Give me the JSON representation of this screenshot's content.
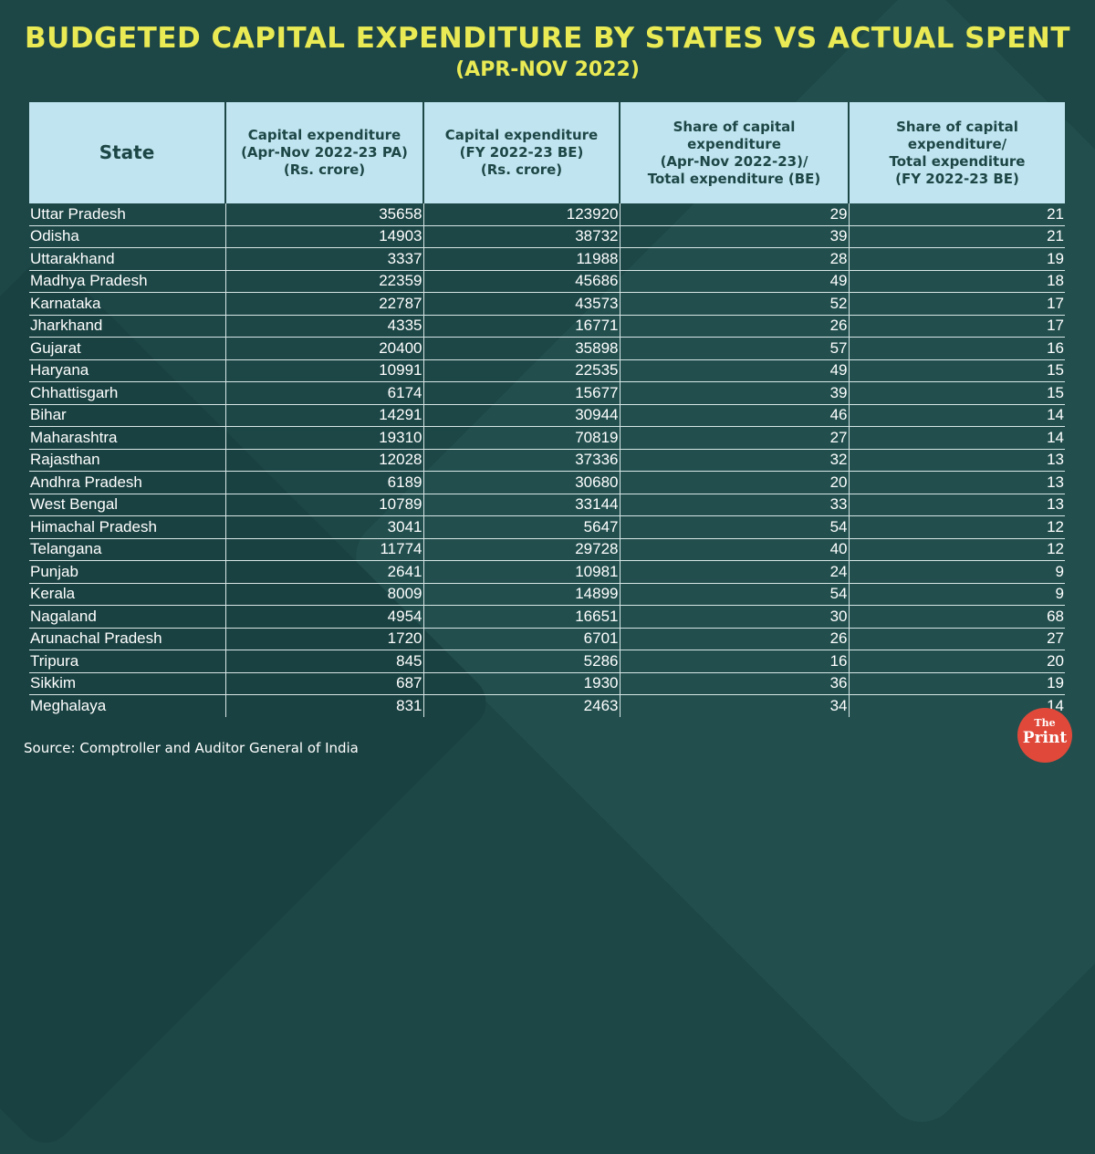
{
  "chart_data": {
    "type": "table",
    "title": "BUDGETED CAPITAL EXPENDITURE BY STATES VS ACTUAL SPENT",
    "subtitle": "(APR-NOV 2022)",
    "columns": [
      {
        "line1": "State"
      },
      {
        "line1": "Capital expenditure",
        "line2": "(Apr-Nov 2022-23 PA)",
        "line3": "(Rs. crore)"
      },
      {
        "line1": "Capital expenditure",
        "line2": "(FY 2022-23 BE)",
        "line3": "(Rs. crore)"
      },
      {
        "line1": "Share of capital",
        "line2": "expenditure",
        "line3": "(Apr-Nov 2022-23)/",
        "line4": "Total expenditure (BE)"
      },
      {
        "line1": "Share of capital",
        "line2": "expenditure/",
        "line3": "Total expenditure",
        "line4": "(FY 2022-23 BE)"
      }
    ],
    "rows": [
      {
        "state": "Uttar Pradesh",
        "capex_pa": 35658,
        "capex_be": 123920,
        "share_apr_nov": 29,
        "share_fy": 21
      },
      {
        "state": "Odisha",
        "capex_pa": 14903,
        "capex_be": 38732,
        "share_apr_nov": 39,
        "share_fy": 21
      },
      {
        "state": "Uttarakhand",
        "capex_pa": 3337,
        "capex_be": 11988,
        "share_apr_nov": 28,
        "share_fy": 19
      },
      {
        "state": "Madhya Pradesh",
        "capex_pa": 22359,
        "capex_be": 45686,
        "share_apr_nov": 49,
        "share_fy": 18
      },
      {
        "state": "Karnataka",
        "capex_pa": 22787,
        "capex_be": 43573,
        "share_apr_nov": 52,
        "share_fy": 17
      },
      {
        "state": "Jharkhand",
        "capex_pa": 4335,
        "capex_be": 16771,
        "share_apr_nov": 26,
        "share_fy": 17
      },
      {
        "state": "Gujarat",
        "capex_pa": 20400,
        "capex_be": 35898,
        "share_apr_nov": 57,
        "share_fy": 16
      },
      {
        "state": "Haryana",
        "capex_pa": 10991,
        "capex_be": 22535,
        "share_apr_nov": 49,
        "share_fy": 15
      },
      {
        "state": "Chhattisgarh",
        "capex_pa": 6174,
        "capex_be": 15677,
        "share_apr_nov": 39,
        "share_fy": 15
      },
      {
        "state": "Bihar",
        "capex_pa": 14291,
        "capex_be": 30944,
        "share_apr_nov": 46,
        "share_fy": 14
      },
      {
        "state": "Maharashtra",
        "capex_pa": 19310,
        "capex_be": 70819,
        "share_apr_nov": 27,
        "share_fy": 14
      },
      {
        "state": "Rajasthan",
        "capex_pa": 12028,
        "capex_be": 37336,
        "share_apr_nov": 32,
        "share_fy": 13
      },
      {
        "state": "Andhra Pradesh",
        "capex_pa": 6189,
        "capex_be": 30680,
        "share_apr_nov": 20,
        "share_fy": 13
      },
      {
        "state": "West Bengal",
        "capex_pa": 10789,
        "capex_be": 33144,
        "share_apr_nov": 33,
        "share_fy": 13
      },
      {
        "state": "Himachal Pradesh",
        "capex_pa": 3041,
        "capex_be": 5647,
        "share_apr_nov": 54,
        "share_fy": 12
      },
      {
        "state": "Telangana",
        "capex_pa": 11774,
        "capex_be": 29728,
        "share_apr_nov": 40,
        "share_fy": 12
      },
      {
        "state": "Punjab",
        "capex_pa": 2641,
        "capex_be": 10981,
        "share_apr_nov": 24,
        "share_fy": 9
      },
      {
        "state": "Kerala",
        "capex_pa": 8009,
        "capex_be": 14899,
        "share_apr_nov": 54,
        "share_fy": 9
      },
      {
        "state": "Nagaland",
        "capex_pa": 4954,
        "capex_be": 16651,
        "share_apr_nov": 30,
        "share_fy": 68
      },
      {
        "state": "Arunachal Pradesh",
        "capex_pa": 1720,
        "capex_be": 6701,
        "share_apr_nov": 26,
        "share_fy": 27
      },
      {
        "state": "Tripura",
        "capex_pa": 845,
        "capex_be": 5286,
        "share_apr_nov": 16,
        "share_fy": 20
      },
      {
        "state": "Sikkim",
        "capex_pa": 687,
        "capex_be": 1930,
        "share_apr_nov": 36,
        "share_fy": 19
      },
      {
        "state": "Meghalaya",
        "capex_pa": 831,
        "capex_be": 2463,
        "share_apr_nov": 34,
        "share_fy": 14
      }
    ],
    "source": "Source: Comptroller and Auditor General of India"
  },
  "logo": {
    "line1": "The",
    "line2": "Print"
  },
  "colors": {
    "background": "#1d4646",
    "title": "#e9ea54",
    "header_bg": "#c1e5f0",
    "logo": "#e0493a"
  }
}
